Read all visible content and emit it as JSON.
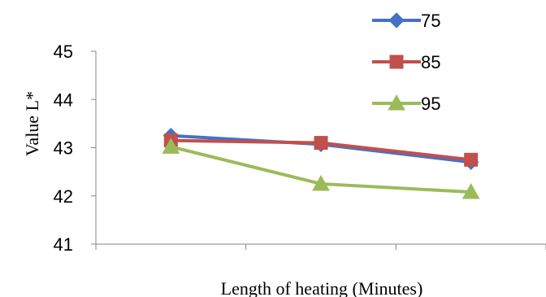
{
  "chart_data": {
    "type": "line",
    "title": "",
    "xlabel": "Length of heating (Minutes)",
    "ylabel": "Value L*",
    "ylim": [
      41,
      45
    ],
    "yticks": [
      "41",
      "42",
      "43",
      "44",
      "45"
    ],
    "x_category_count": 3,
    "x_tick_labels_shown": false,
    "grid": false,
    "legend_position": "top-right",
    "series": [
      {
        "name": "75",
        "values": [
          43.25,
          43.07,
          42.7
        ],
        "color": "#4472C4",
        "marker": "diamond"
      },
      {
        "name": "85",
        "values": [
          43.15,
          43.1,
          42.75
        ],
        "color": "#C0504D",
        "marker": "square"
      },
      {
        "name": "95",
        "values": [
          43.02,
          42.25,
          42.08
        ],
        "color": "#9BBB59",
        "marker": "triangle"
      }
    ]
  }
}
